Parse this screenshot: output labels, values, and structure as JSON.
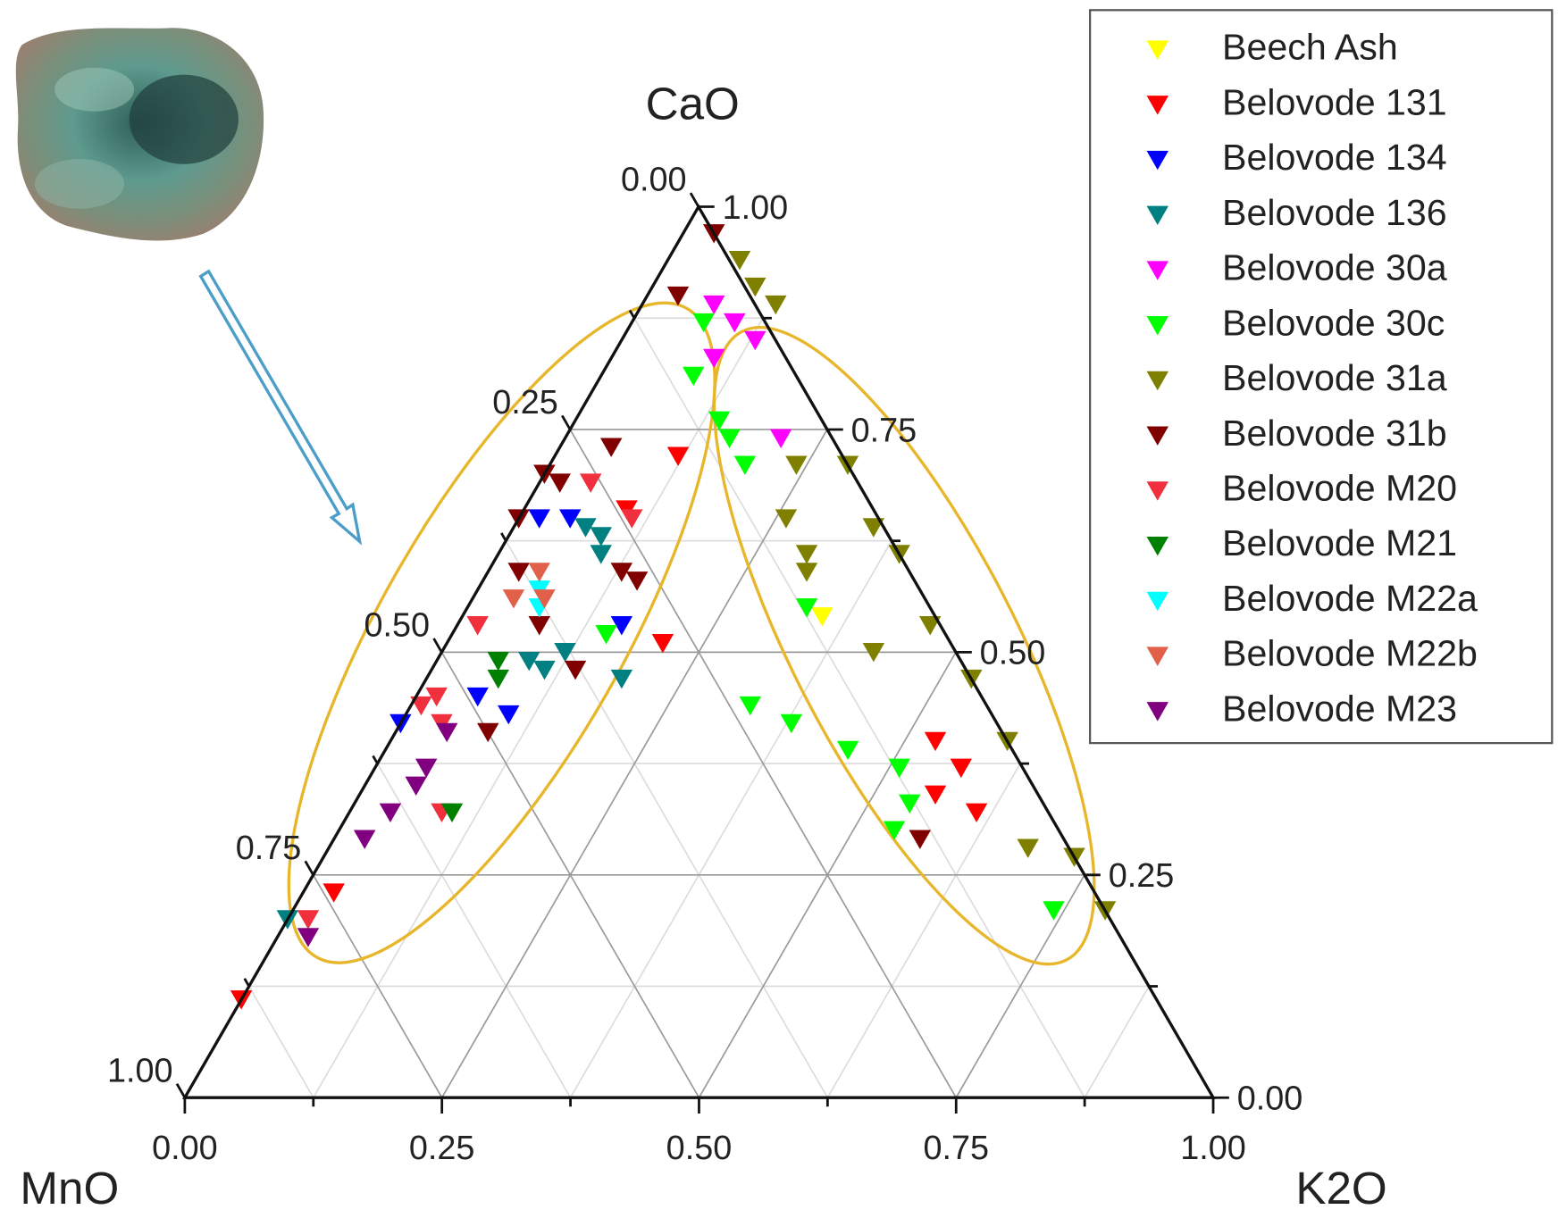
{
  "chart_data": {
    "type": "ternary",
    "corner_labels": {
      "top": "CaO",
      "left": "MnO",
      "right": "K2O"
    },
    "ticks": [
      {
        "value": 0,
        "label": "0.00"
      },
      {
        "value": 0.25,
        "label": "0.25"
      },
      {
        "value": 0.5,
        "label": "0.50"
      },
      {
        "value": 0.75,
        "label": "0.75"
      },
      {
        "value": 1,
        "label": "1.00"
      }
    ],
    "minor_ticks": [
      0.125,
      0.375,
      0.625,
      0.875
    ],
    "grid": true,
    "legend": "top-right",
    "series": [
      {
        "name": "Beech Ash",
        "color": "#ffff00",
        "x": [
          0.35
        ],
        "values": [
          0.54
        ]
      },
      {
        "name": "Belovode 131",
        "color": "#ff0000",
        "x": [
          0.53,
          0.57,
          0.61,
          0.56,
          0.12,
          0.1,
          0.21,
          0.0,
          0.03
        ],
        "values": [
          0.4,
          0.37,
          0.32,
          0.34,
          0.72,
          0.66,
          0.51,
          0.11,
          0.23
        ]
      },
      {
        "name": "Belovode 134",
        "color": "#0000ff",
        "x": [
          0.02,
          0.0,
          0.06,
          0.1,
          0.16,
          0.05
        ],
        "values": [
          0.65,
          0.42,
          0.45,
          0.43,
          0.53,
          0.65
        ]
      },
      {
        "name": "Belovode 136",
        "color": "#008080",
        "x": [
          0.09,
          0.1,
          0.09,
          0.11,
          0.12,
          0.19,
          0.0,
          0.07
        ],
        "values": [
          0.63,
          0.61,
          0.49,
          0.48,
          0.5,
          0.47,
          0.2,
          0.64
        ]
      },
      {
        "name": "Belovode 30a",
        "color": "#ff00ff",
        "x": [
          0.07,
          0.1,
          0.13,
          0.1,
          0.21
        ],
        "values": [
          0.89,
          0.87,
          0.85,
          0.83,
          0.74
        ]
      },
      {
        "name": "Belovode 30c",
        "color": "#00ff00",
        "x": [
          0.07,
          0.09,
          0.14,
          0.16,
          0.19,
          0.33,
          0.33,
          0.38,
          0.45,
          0.51,
          0.54,
          0.54,
          0.74,
          0.15
        ],
        "values": [
          0.87,
          0.81,
          0.76,
          0.74,
          0.71,
          0.55,
          0.44,
          0.42,
          0.39,
          0.37,
          0.33,
          0.3,
          0.21,
          0.52
        ]
      },
      {
        "name": "Belovode 31a",
        "color": "#808000",
        "x": [
          0.07,
          0.13,
          0.24,
          0.29,
          0.35,
          0.39,
          0.46,
          0.53,
          0.6,
          0.73,
          0.79,
          0.68,
          0.42,
          0.26,
          0.31,
          0.3,
          0.1
        ],
        "values": [
          0.94,
          0.89,
          0.71,
          0.71,
          0.64,
          0.61,
          0.53,
          0.47,
          0.4,
          0.27,
          0.21,
          0.28,
          0.5,
          0.65,
          0.59,
          0.61,
          0.91
        ]
      },
      {
        "name": "Belovode 31b",
        "color": "#800000",
        "x": [
          0.03,
          0.03,
          0.05,
          0.0,
          0.0,
          0.02,
          0.15,
          0.13,
          0.08,
          0.14,
          0.09,
          0.57,
          0.03
        ],
        "values": [
          0.97,
          0.9,
          0.73,
          0.7,
          0.65,
          0.69,
          0.58,
          0.59,
          0.53,
          0.48,
          0.41,
          0.29,
          0.59
        ]
      },
      {
        "name": "Belovode M20",
        "color": "#f0303c",
        "x": [
          0.02,
          0.02,
          0.01,
          0.04,
          0.05,
          0.11,
          0.02,
          0.09
        ],
        "values": [
          0.53,
          0.45,
          0.44,
          0.42,
          0.69,
          0.65,
          0.2,
          0.32
        ]
      },
      {
        "name": "Belovode M21",
        "color": "#008000",
        "x": [
          0.06,
          0.07,
          0.1
        ],
        "values": [
          0.49,
          0.47,
          0.32
        ]
      },
      {
        "name": "Belovode M22a",
        "color": "#00ffff",
        "x": [
          0.06,
          0.07
        ],
        "values": [
          0.57,
          0.55
        ]
      },
      {
        "name": "Belovode M22b",
        "color": "#e0604a",
        "x": [
          0.05,
          0.04,
          0.07
        ],
        "values": [
          0.59,
          0.56,
          0.56
        ]
      },
      {
        "name": "Belovode M23",
        "color": "#800080",
        "x": [
          0.05,
          0.05,
          0.05,
          0.04,
          0.03,
          0.03
        ],
        "values": [
          0.41,
          0.37,
          0.35,
          0.32,
          0.29,
          0.18
        ]
      }
    ]
  }
}
